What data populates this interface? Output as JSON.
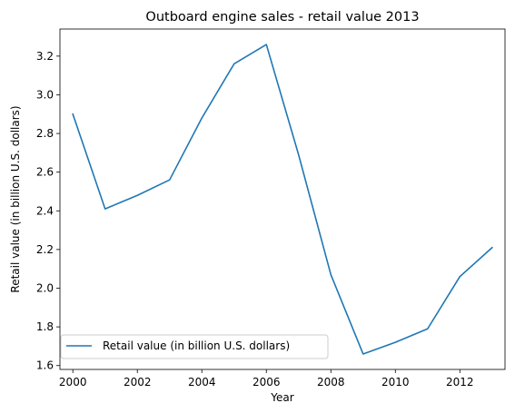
{
  "chart_data": {
    "type": "line",
    "title": "Outboard engine sales - retail value 2013",
    "xlabel": "Year",
    "ylabel": "Retail value (in billion U.S. dollars)",
    "xlim": [
      1999.6,
      2013.4
    ],
    "ylim": [
      1.58,
      3.34
    ],
    "xticks": [
      2000,
      2002,
      2004,
      2006,
      2008,
      2010,
      2012
    ],
    "yticks": [
      1.6,
      1.8,
      2.0,
      2.2,
      2.4,
      2.6,
      2.8,
      3.0,
      3.2
    ],
    "ytick_labels": [
      "1.6",
      "1.8",
      "2.0",
      "2.2",
      "2.4",
      "2.6",
      "2.8",
      "3.0",
      "3.2"
    ],
    "grid": false,
    "legend_position": "lower-left",
    "series": [
      {
        "name": "Retail value (in billion U.S. dollars)",
        "color": "#1f77b4",
        "x": [
          2000,
          2001,
          2002,
          2003,
          2004,
          2005,
          2006,
          2007,
          2008,
          2009,
          2010,
          2011,
          2012,
          2013
        ],
        "y": [
          2.9,
          2.41,
          2.48,
          2.56,
          2.88,
          3.16,
          3.26,
          2.69,
          2.07,
          1.66,
          1.72,
          1.79,
          2.06,
          2.21
        ]
      }
    ]
  }
}
